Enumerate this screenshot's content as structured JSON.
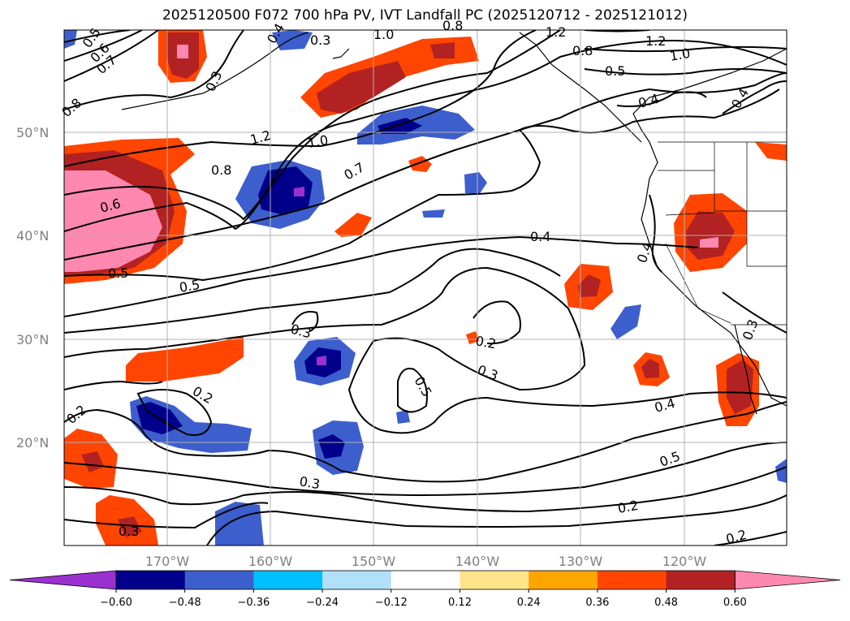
{
  "title": "2025120500 F072 700 hPa PV, IVT Landfall PC (2025120712 - 2025121012)",
  "lat_labels": [
    "50°N",
    "40°N",
    "30°N",
    "20°N"
  ],
  "lon_labels": [
    "170°W",
    "160°W",
    "150°W",
    "140°W",
    "130°W",
    "120°W"
  ],
  "colorbar": {
    "colors": [
      "#9b30d0",
      "#00008b",
      "#3d5fcd",
      "#00bfff",
      "#b0e0fa",
      "#ffffff",
      "#ffe48a",
      "#ffa500",
      "#ff4500",
      "#b22222",
      "#ff88b0"
    ],
    "ticks": [
      "−0.60",
      "−0.48",
      "−0.36",
      "−0.24",
      "−0.12",
      "0.12",
      "0.24",
      "0.36",
      "0.48",
      "0.60"
    ]
  },
  "contour_labels": [
    "0.5",
    "0.6",
    "0.7",
    "0.8",
    "1.2",
    "1.0",
    "0.3",
    "1.2",
    "0.8",
    "1.0",
    "0.5",
    "0.4",
    "0.4",
    "1.2",
    "1.0",
    "0.8",
    "0.7",
    "0.6",
    "0.5",
    "0.5",
    "0.4",
    "0.4",
    "0.3",
    "0.2",
    "0.3",
    "0.5",
    "0.2",
    "0.2",
    "0.3",
    "0.4",
    "0.5",
    "0.2",
    "0.2",
    "0.3",
    "0.3",
    "0.3",
    "0.4",
    "0.8"
  ],
  "colors": {
    "grid": "#b0b0b0",
    "contour": "#000000",
    "axis_label": "#808080"
  }
}
